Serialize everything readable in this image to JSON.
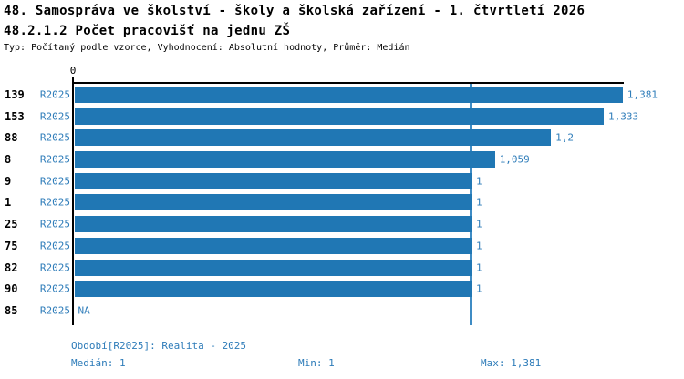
{
  "title": "48. Samospráva ve školství - školy a školská zařízení - 1. čtvrtletí 2026",
  "subtitle": "48.2.1.2 Počet pracovišť na jednu ZŠ",
  "meta": "Typ: Počítaný podle vzorce, Vyhodnocení: Absolutní hodnoty, Průměr: Medián",
  "colors": {
    "bar": "#2077b4",
    "blue_text": "#2e7cb9",
    "median_line": "#3f8cc4",
    "axis": "#000000"
  },
  "chart_data": {
    "type": "bar",
    "orientation": "horizontal",
    "title": "48.2.1.2 Počet pracovišť na jednu ZŠ",
    "xlabel": "",
    "ylabel": "",
    "xlim": [
      0,
      1.381
    ],
    "axis_zero_label": "0",
    "series_name": "R2025",
    "median": 1,
    "grid": false,
    "legend_position": "none",
    "rows": [
      {
        "id": "139",
        "period": "R2025",
        "value": 1.381,
        "value_label": "1,381"
      },
      {
        "id": "153",
        "period": "R2025",
        "value": 1.333,
        "value_label": "1,333"
      },
      {
        "id": "88",
        "period": "R2025",
        "value": 1.2,
        "value_label": "1,2"
      },
      {
        "id": "8",
        "period": "R2025",
        "value": 1.059,
        "value_label": "1,059"
      },
      {
        "id": "9",
        "period": "R2025",
        "value": 1,
        "value_label": "1"
      },
      {
        "id": "1",
        "period": "R2025",
        "value": 1,
        "value_label": "1"
      },
      {
        "id": "25",
        "period": "R2025",
        "value": 1,
        "value_label": "1"
      },
      {
        "id": "75",
        "period": "R2025",
        "value": 1,
        "value_label": "1"
      },
      {
        "id": "82",
        "period": "R2025",
        "value": 1,
        "value_label": "1"
      },
      {
        "id": "90",
        "period": "R2025",
        "value": 1,
        "value_label": "1"
      },
      {
        "id": "85",
        "period": "R2025",
        "value": null,
        "value_label": "NA"
      }
    ]
  },
  "footer": {
    "period_line": "Období[R2025]: Realita - 2025",
    "median_label": "Medián: 1",
    "min_label": "Min: 1",
    "max_label": "Max: 1,381"
  }
}
